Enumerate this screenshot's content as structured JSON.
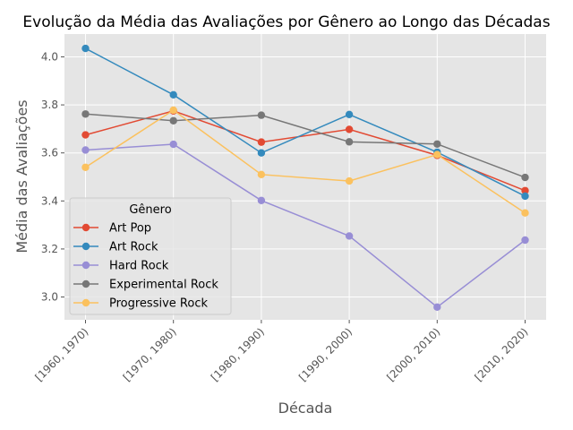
{
  "chart_data": {
    "type": "line",
    "title": "Evolução da Média das Avaliações por Gênero ao Longo das Décadas",
    "xlabel": "Década",
    "ylabel": "Média das Avaliações",
    "categories": [
      "[1960, 1970)",
      "[1970, 1980)",
      "[1980, 1990)",
      "[1990, 2000)",
      "[2000, 2010)",
      "[2010, 2020)"
    ],
    "ylim": [
      2.905,
      4.095
    ],
    "yticks": [
      "3.0",
      "3.2",
      "3.4",
      "3.6",
      "3.8",
      "4.0"
    ],
    "grid": true,
    "legend": {
      "title": "Gênero",
      "placement": "lower-left"
    },
    "series": [
      {
        "name": "Art Pop",
        "color": "#E24A33",
        "values": [
          3.675,
          3.775,
          3.645,
          3.698,
          3.59,
          3.443
        ]
      },
      {
        "name": "Art Rock",
        "color": "#348ABD",
        "values": [
          4.035,
          3.842,
          3.6,
          3.76,
          3.603,
          3.42
        ]
      },
      {
        "name": "Hard Rock",
        "color": "#988ED5",
        "values": [
          3.612,
          3.636,
          3.402,
          3.254,
          2.958,
          3.237
        ]
      },
      {
        "name": "Experimental Rock",
        "color": "#777777",
        "values": [
          3.762,
          3.734,
          3.757,
          3.646,
          3.637,
          3.498
        ]
      },
      {
        "name": "Progressive Rock",
        "color": "#FBC15E",
        "values": [
          3.54,
          3.778,
          3.51,
          3.483,
          3.593,
          3.35
        ]
      }
    ]
  }
}
